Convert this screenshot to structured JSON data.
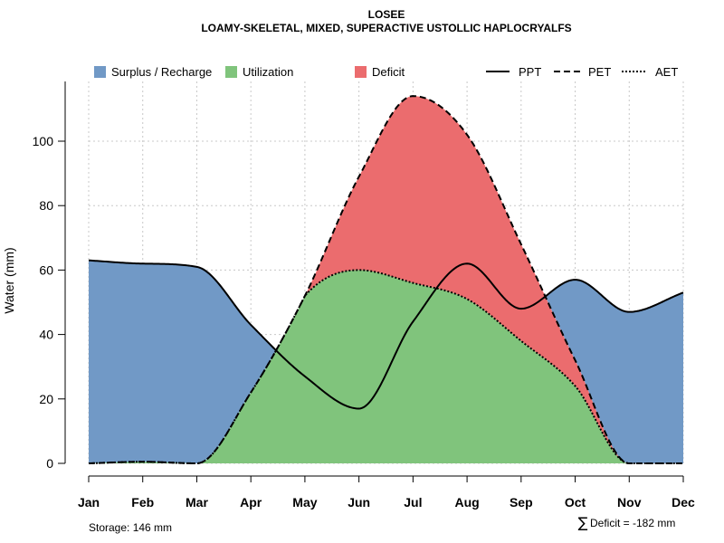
{
  "chart_data": {
    "type": "area",
    "title": "LOSEE",
    "subtitle": "LOAMY-SKELETAL, MIXED, SUPERACTIVE USTOLLIC HAPLOCRYALFS",
    "ylabel": "Water (mm)",
    "xlabel": "",
    "ylim": [
      0,
      118
    ],
    "yticks": [
      "0",
      "20",
      "40",
      "60",
      "80",
      "100"
    ],
    "grid": true,
    "categories": [
      "Jan",
      "Feb",
      "Mar",
      "Apr",
      "May",
      "Jun",
      "Jul",
      "Aug",
      "Sep",
      "Oct",
      "Nov",
      "Dec"
    ],
    "series": [
      {
        "name": "PPT",
        "style": "solid",
        "values": [
          63,
          62,
          61,
          43,
          27,
          17,
          44,
          62,
          48,
          57,
          47,
          53
        ]
      },
      {
        "name": "PET",
        "style": "dashed",
        "values": [
          0,
          0.5,
          0,
          22,
          52,
          89,
          114,
          102,
          68,
          32,
          0,
          0
        ]
      },
      {
        "name": "AET",
        "style": "dotted",
        "values": [
          0,
          0.5,
          0,
          22,
          52,
          60,
          56,
          51,
          38,
          24,
          0,
          0
        ]
      }
    ],
    "areas": [
      {
        "name": "Surplus / Recharge",
        "color": "#7199C6"
      },
      {
        "name": "Utilization",
        "color": "#80C47C"
      },
      {
        "name": "Deficit",
        "color": "#EB6C6E"
      }
    ],
    "legend_position": "top",
    "footnotes": {
      "storage": "Storage: 146 mm",
      "deficit_symbol": "∑",
      "deficit": "Deficit = -182 mm"
    }
  }
}
